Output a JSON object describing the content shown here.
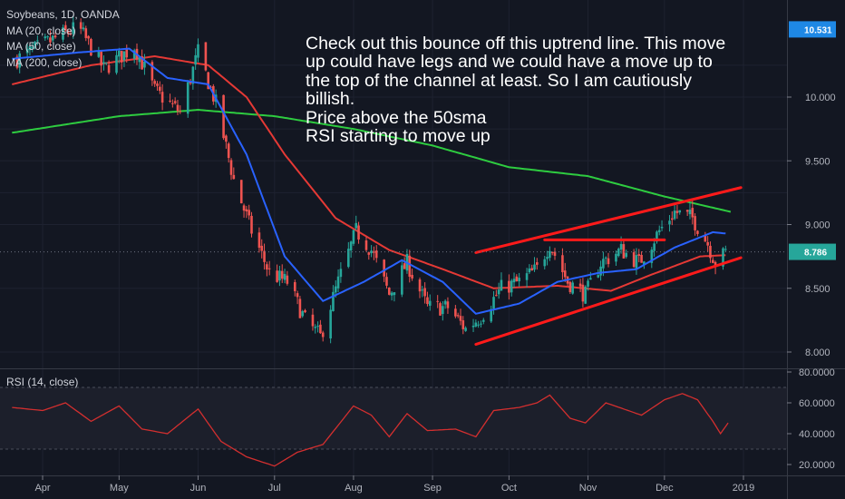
{
  "header": {
    "symbol": "Soybeans, 1D, OANDA",
    "ma20": "MA (20, close)",
    "ma50": "MA (50, close)",
    "ma200": "MA (200, close)"
  },
  "annotation": {
    "lines": [
      "Check out this bounce off this uptrend line. This move",
      "up could have legs and we could have a move up to",
      "the top of the channel at least. So I am cautiously",
      "billish.",
      "Price above the 50sma",
      "RSI starting to move up"
    ]
  },
  "rsi_panel": {
    "label": "RSI (14, close)"
  },
  "colors": {
    "background": "#131722",
    "grid": "#1e2230",
    "up": "#26a69a",
    "down": "#ef5350",
    "ma20": "#2962ff",
    "ma50": "#e53935",
    "ma200": "#2ecc40",
    "trendline": "#ff1a1a",
    "rsi": "#d32f2f",
    "rsi_band": "#1c1f2b",
    "current_price_bg": "#26a69a",
    "last_price_bg": "#1e88e5"
  },
  "chart_data": [
    {
      "type": "candlestick",
      "title": "Soybeans, 1D, OANDA",
      "x_ticks": [
        "Apr",
        "May",
        "Jun",
        "Jul",
        "Aug",
        "Sep",
        "Oct",
        "Nov",
        "Dec",
        "2019"
      ],
      "y_ticks": [
        "8.000",
        "8.500",
        "9.000",
        "9.500",
        "10.000"
      ],
      "ylim": [
        7.9,
        10.7
      ],
      "last_price": "10.531",
      "current_price": "8.786",
      "anchors": [
        {
          "d": "Mar 22",
          "p": 10.3
        },
        {
          "d": "Apr 5",
          "p": 10.45
        },
        {
          "d": "Apr 15",
          "p": 10.55
        },
        {
          "d": "Apr 25",
          "p": 10.22
        },
        {
          "d": "May 7",
          "p": 10.4
        },
        {
          "d": "May 15",
          "p": 10.05
        },
        {
          "d": "May 25",
          "p": 9.88
        },
        {
          "d": "Jun 1",
          "p": 10.35
        },
        {
          "d": "Jun 8",
          "p": 9.95
        },
        {
          "d": "Jun 15",
          "p": 9.35
        },
        {
          "d": "Jun 22",
          "p": 8.95
        },
        {
          "d": "Jun 29",
          "p": 8.62
        },
        {
          "d": "Jul 6",
          "p": 8.55
        },
        {
          "d": "Jul 13",
          "p": 8.25
        },
        {
          "d": "Jul 19",
          "p": 8.12
        },
        {
          "d": "Jul 26",
          "p": 8.55
        },
        {
          "d": "Aug 2",
          "p": 8.95
        },
        {
          "d": "Aug 8",
          "p": 8.8
        },
        {
          "d": "Aug 15",
          "p": 8.45
        },
        {
          "d": "Aug 22",
          "p": 8.7
        },
        {
          "d": "Aug 30",
          "p": 8.35
        },
        {
          "d": "Sep 7",
          "p": 8.35
        },
        {
          "d": "Sep 14",
          "p": 8.18
        },
        {
          "d": "Sep 20",
          "p": 8.28
        },
        {
          "d": "Sep 28",
          "p": 8.5
        },
        {
          "d": "Oct 5",
          "p": 8.55
        },
        {
          "d": "Oct 12",
          "p": 8.65
        },
        {
          "d": "Oct 17",
          "p": 8.85
        },
        {
          "d": "Oct 24",
          "p": 8.55
        },
        {
          "d": "Oct 31",
          "p": 8.45
        },
        {
          "d": "Nov 6",
          "p": 8.7
        },
        {
          "d": "Nov 14",
          "p": 8.8
        },
        {
          "d": "Nov 21",
          "p": 8.7
        },
        {
          "d": "Nov 29",
          "p": 8.95
        },
        {
          "d": "Dec 5",
          "p": 9.1
        },
        {
          "d": "Dec 12",
          "p": 9.05
        },
        {
          "d": "Dec 18",
          "p": 8.85
        },
        {
          "d": "Dec 21",
          "p": 8.7
        },
        {
          "d": "Dec 25",
          "p": 8.78
        }
      ],
      "ma20": [
        {
          "d": "Mar 20",
          "p": 10.3
        },
        {
          "d": "Apr 15",
          "p": 10.35
        },
        {
          "d": "May 5",
          "p": 10.38
        },
        {
          "d": "May 20",
          "p": 10.15
        },
        {
          "d": "Jun 5",
          "p": 10.1
        },
        {
          "d": "Jun 20",
          "p": 9.55
        },
        {
          "d": "Jul 5",
          "p": 8.75
        },
        {
          "d": "Jul 20",
          "p": 8.4
        },
        {
          "d": "Aug 5",
          "p": 8.55
        },
        {
          "d": "Aug 20",
          "p": 8.72
        },
        {
          "d": "Sep 5",
          "p": 8.55
        },
        {
          "d": "Sep 18",
          "p": 8.3
        },
        {
          "d": "Oct 5",
          "p": 8.38
        },
        {
          "d": "Oct 20",
          "p": 8.55
        },
        {
          "d": "Nov 5",
          "p": 8.62
        },
        {
          "d": "Nov 20",
          "p": 8.65
        },
        {
          "d": "Dec 5",
          "p": 8.82
        },
        {
          "d": "Dec 20",
          "p": 8.94
        },
        {
          "d": "Dec 25",
          "p": 8.93
        }
      ],
      "ma50": [
        {
          "d": "Mar 20",
          "p": 10.1
        },
        {
          "d": "Apr 20",
          "p": 10.25
        },
        {
          "d": "May 15",
          "p": 10.32
        },
        {
          "d": "Jun 5",
          "p": 10.25
        },
        {
          "d": "Jun 20",
          "p": 10.0
        },
        {
          "d": "Jul 5",
          "p": 9.55
        },
        {
          "d": "Jul 25",
          "p": 9.05
        },
        {
          "d": "Aug 15",
          "p": 8.8
        },
        {
          "d": "Sep 5",
          "p": 8.65
        },
        {
          "d": "Sep 25",
          "p": 8.5
        },
        {
          "d": "Oct 20",
          "p": 8.52
        },
        {
          "d": "Nov 10",
          "p": 8.48
        },
        {
          "d": "Nov 25",
          "p": 8.6
        },
        {
          "d": "Dec 15",
          "p": 8.75
        },
        {
          "d": "Dec 25",
          "p": 8.76
        }
      ],
      "ma200": [
        {
          "d": "Mar 20",
          "p": 9.72
        },
        {
          "d": "May 1",
          "p": 9.85
        },
        {
          "d": "Jun 1",
          "p": 9.9
        },
        {
          "d": "Jul 1",
          "p": 9.85
        },
        {
          "d": "Aug 1",
          "p": 9.75
        },
        {
          "d": "Sep 1",
          "p": 9.62
        },
        {
          "d": "Oct 1",
          "p": 9.45
        },
        {
          "d": "Nov 1",
          "p": 9.38
        },
        {
          "d": "Dec 1",
          "p": 9.22
        },
        {
          "d": "Dec 27",
          "p": 9.1
        }
      ],
      "trendlines": [
        {
          "from": {
            "d": "Sep 18",
            "p": 8.06
          },
          "to": {
            "d": "Dec 31",
            "p": 8.74
          }
        },
        {
          "from": {
            "d": "Sep 18",
            "p": 8.78
          },
          "to": {
            "d": "Dec 31",
            "p": 9.29
          }
        },
        {
          "from": {
            "d": "Oct 15",
            "p": 8.88
          },
          "to": {
            "d": "Dec 1",
            "p": 8.88
          }
        }
      ]
    },
    {
      "type": "line",
      "title": "RSI (14, close)",
      "y_ticks": [
        "20.0000",
        "40.0000",
        "60.0000",
        "80.0000"
      ],
      "ylim": [
        16,
        82
      ],
      "band": [
        30,
        70
      ],
      "points": [
        {
          "d": "Mar 20",
          "v": 57
        },
        {
          "d": "Apr 1",
          "v": 55
        },
        {
          "d": "Apr 10",
          "v": 60
        },
        {
          "d": "Apr 20",
          "v": 48
        },
        {
          "d": "May 1",
          "v": 58
        },
        {
          "d": "May 10",
          "v": 43
        },
        {
          "d": "May 20",
          "v": 40
        },
        {
          "d": "Jun 1",
          "v": 56
        },
        {
          "d": "Jun 10",
          "v": 35
        },
        {
          "d": "Jun 20",
          "v": 25
        },
        {
          "d": "Jul 1",
          "v": 19
        },
        {
          "d": "Jul 10",
          "v": 28
        },
        {
          "d": "Jul 20",
          "v": 33
        },
        {
          "d": "Aug 1",
          "v": 58
        },
        {
          "d": "Aug 8",
          "v": 52
        },
        {
          "d": "Aug 15",
          "v": 38
        },
        {
          "d": "Aug 22",
          "v": 53
        },
        {
          "d": "Aug 30",
          "v": 42
        },
        {
          "d": "Sep 10",
          "v": 43
        },
        {
          "d": "Sep 18",
          "v": 38
        },
        {
          "d": "Sep 25",
          "v": 55
        },
        {
          "d": "Oct 5",
          "v": 57
        },
        {
          "d": "Oct 12",
          "v": 60
        },
        {
          "d": "Oct 17",
          "v": 65
        },
        {
          "d": "Oct 25",
          "v": 50
        },
        {
          "d": "Oct 31",
          "v": 47
        },
        {
          "d": "Nov 8",
          "v": 60
        },
        {
          "d": "Nov 15",
          "v": 56
        },
        {
          "d": "Nov 22",
          "v": 52
        },
        {
          "d": "Dec 1",
          "v": 62
        },
        {
          "d": "Dec 8",
          "v": 66
        },
        {
          "d": "Dec 14",
          "v": 62
        },
        {
          "d": "Dec 20",
          "v": 48
        },
        {
          "d": "Dec 23",
          "v": 40
        },
        {
          "d": "Dec 26",
          "v": 47
        }
      ]
    }
  ]
}
